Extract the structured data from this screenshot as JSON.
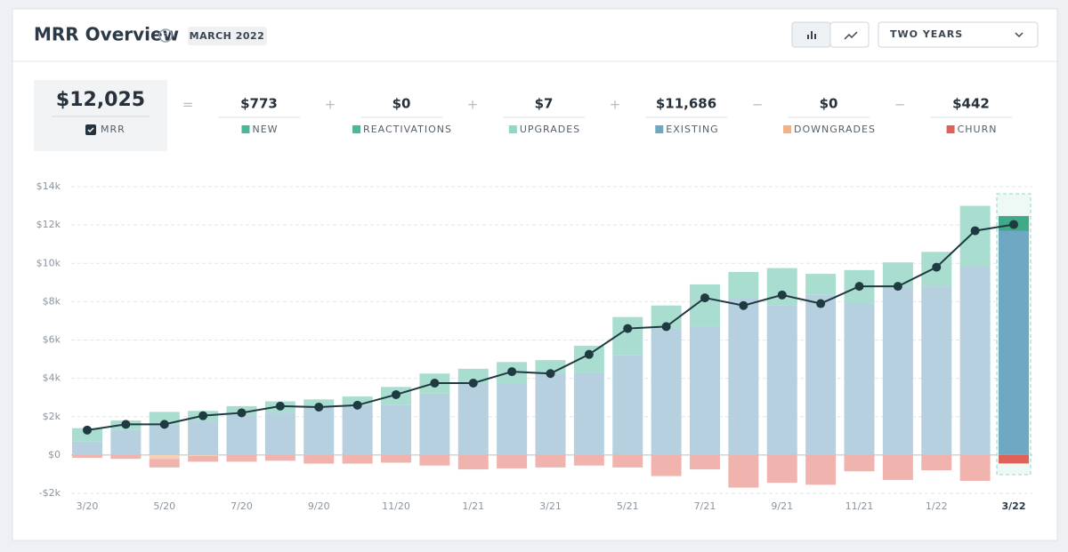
{
  "header": {
    "title": "MRR Overview",
    "period": "MARCH 2022",
    "range": "TWO YEARS"
  },
  "summary": {
    "mrr": {
      "value": "$12,025",
      "label": "MRR"
    },
    "operators": [
      "=",
      "+",
      "+",
      "+",
      "−",
      "−"
    ],
    "items": [
      {
        "value": "$773",
        "label": "NEW",
        "color": "#4cb69a"
      },
      {
        "value": "$0",
        "label": "REACTIVATIONS",
        "color": "#4cb69a"
      },
      {
        "value": "$7",
        "label": "UPGRADES",
        "color": "#8fd8c3"
      },
      {
        "value": "$11,686",
        "label": "EXISTING",
        "color": "#6fa8c3"
      },
      {
        "value": "$0",
        "label": "DOWNGRADES",
        "color": "#f3b185"
      },
      {
        "value": "$442",
        "label": "CHURN",
        "color": "#e0615a"
      }
    ]
  },
  "chart_data": {
    "type": "bar",
    "categories": [
      "3/20",
      null,
      "5/20",
      null,
      "7/20",
      null,
      "9/20",
      null,
      "11/20",
      null,
      "1/21",
      null,
      "3/21",
      null,
      "5/21",
      null,
      "7/21",
      null,
      "9/21",
      null,
      "11/21",
      null,
      "1/22",
      null,
      "3/22"
    ],
    "ylim": [
      -2000,
      14000
    ],
    "yticks": [
      {
        "value": -2000,
        "label": "-$2k"
      },
      {
        "value": 0,
        "label": "$0"
      },
      {
        "value": 2000,
        "label": "$2k"
      },
      {
        "value": 4000,
        "label": "$4k"
      },
      {
        "value": 6000,
        "label": "$6k"
      },
      {
        "value": 8000,
        "label": "$8k"
      },
      {
        "value": 10000,
        "label": "$10k"
      },
      {
        "value": 12000,
        "label": "$12k"
      },
      {
        "value": 14000,
        "label": "$14k"
      }
    ],
    "grid": true,
    "series": [
      {
        "color": "#b6d0e0",
        "highlight_color": "#6fa8c3",
        "values": [
          700,
          1300,
          1600,
          1800,
          2100,
          2200,
          2500,
          2600,
          2600,
          3200,
          3750,
          3750,
          4300,
          4300,
          5200,
          6600,
          6700,
          8200,
          7800,
          8350,
          7900,
          8800,
          8800,
          9850,
          11686
        ]
      },
      {
        "color": "#a9ddd0",
        "highlight_color": "#3fa98a",
        "values": [
          700,
          500,
          650,
          500,
          450,
          600,
          400,
          450,
          950,
          1050,
          750,
          1100,
          650,
          1400,
          2000,
          1200,
          2200,
          1350,
          1950,
          1100,
          1750,
          1250,
          1800,
          3150,
          780
        ]
      },
      {
        "color": "#f6d0b3",
        "highlight_color": "#f3b185",
        "values": [
          0,
          0,
          -200,
          -50,
          0,
          0,
          0,
          0,
          0,
          0,
          0,
          0,
          0,
          0,
          0,
          0,
          0,
          0,
          0,
          0,
          0,
          0,
          0,
          0,
          0
        ]
      },
      {
        "color": "#f0b3ae",
        "highlight_color": "#e0615a",
        "values": [
          -150,
          -200,
          -450,
          -300,
          -350,
          -300,
          -450,
          -450,
          -400,
          -550,
          -750,
          -700,
          -650,
          -550,
          -650,
          -1100,
          -750,
          -1700,
          -1450,
          -1550,
          -850,
          -1300,
          -800,
          -1350,
          -442
        ]
      },
      {
        "type": "line",
        "color": "#1f3a40",
        "values": [
          1300,
          1600,
          1600,
          2050,
          2200,
          2550,
          2500,
          2600,
          3150,
          3750,
          3750,
          4350,
          4250,
          5250,
          6600,
          6700,
          8200,
          7800,
          8350,
          7900,
          8800,
          8800,
          9800,
          11700,
          12025
        ]
      }
    ]
  }
}
